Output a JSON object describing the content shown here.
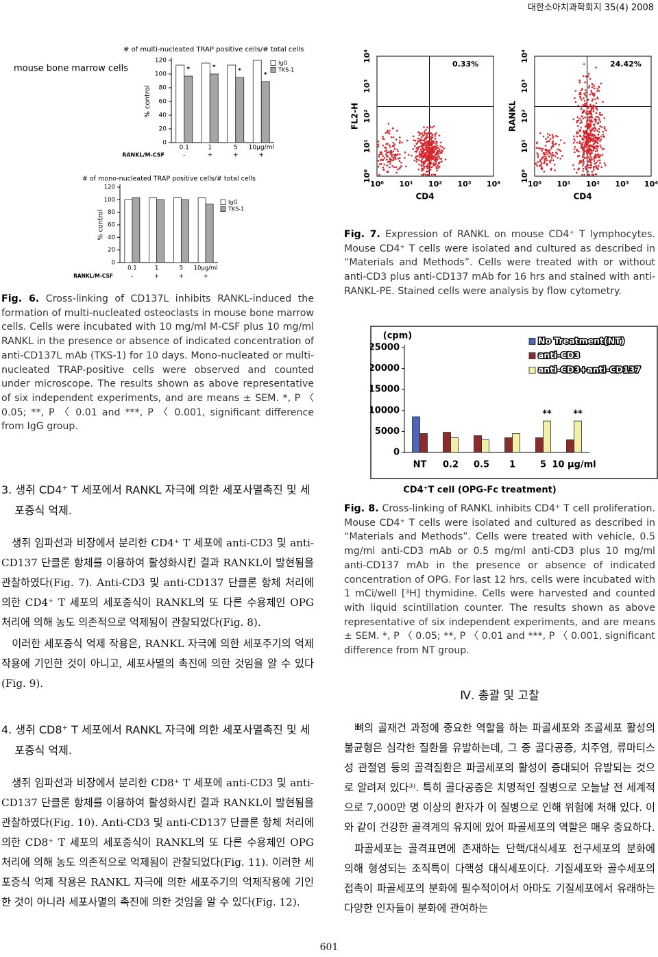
{
  "header": {
    "journal": "대한소아치과학회지 35(4) 2008"
  },
  "chart_data": [
    {
      "type": "bar",
      "title": "# of multi-nucleated TRAP positive cells/# total cells",
      "side_label": "mouse bone marrow cells",
      "ylabel": "% control",
      "categories": [
        "0.1",
        "1",
        "5",
        "10μg/ml"
      ],
      "series": [
        {
          "name": "IgG",
          "color": "#ffffff",
          "values": [
            113,
            116,
            113,
            120
          ]
        },
        {
          "name": "TKS-1",
          "color": "#a6a6a6",
          "values": [
            97,
            100,
            95,
            89
          ],
          "annotations": [
            "*",
            "*",
            "*",
            "*"
          ]
        }
      ],
      "treatment_row": {
        "label": "RANKL/M-CSF",
        "values": [
          "-",
          "+",
          "+",
          "+"
        ]
      },
      "ylim": [
        0,
        120
      ],
      "yticks": [
        0,
        20,
        40,
        60,
        80,
        100,
        120
      ]
    },
    {
      "type": "bar",
      "title": "# of mono-nucleated TRAP positive cells/# total cells",
      "ylabel": "% control",
      "categories": [
        "0.1",
        "1",
        "5",
        "10μg/ml"
      ],
      "series": [
        {
          "name": "IgG",
          "color": "#ffffff",
          "values": [
            100,
            103,
            103,
            103
          ]
        },
        {
          "name": "TKS-1",
          "color": "#a6a6a6",
          "values": [
            103,
            100,
            100,
            93
          ]
        }
      ],
      "treatment_row": {
        "label": "RANKL/M-CSF",
        "values": [
          "-",
          "+",
          "+",
          "+"
        ]
      },
      "ylim": [
        0,
        120
      ],
      "yticks": [
        0,
        20,
        40,
        60,
        80,
        100,
        120
      ]
    },
    {
      "type": "bar",
      "ylabel": "(cpm)",
      "xlabel": "CD4⁺T cell (OPG-Fc treatment)",
      "categories": [
        "NT",
        "0.2",
        "0.5",
        "1",
        "5",
        "10 μg/ml"
      ],
      "series": [
        {
          "name": "No Treatment(NT)",
          "color": "#4f66b8",
          "values": [
            8500,
            null,
            null,
            null,
            null,
            null
          ]
        },
        {
          "name": "anti-CD3",
          "color": "#8b2b2b",
          "values": [
            4500,
            4800,
            4000,
            3500,
            3500,
            3000
          ]
        },
        {
          "name": "anti-CD3+anti-CD137",
          "color": "#f4efa6",
          "values": [
            null,
            3500,
            3000,
            4500,
            7500,
            7500
          ],
          "annotations": [
            null,
            null,
            null,
            null,
            "**",
            "**"
          ]
        }
      ],
      "ylim": [
        0,
        25000
      ],
      "yticks": [
        0,
        5000,
        10000,
        15000,
        20000,
        25000
      ]
    }
  ],
  "flow_plots": [
    {
      "y_label": "FL2-H",
      "x_label": "CD4",
      "quadrant_label": "0.33%",
      "ticks": [
        "10⁰",
        "10¹",
        "10²",
        "10³",
        "10⁴"
      ]
    },
    {
      "y_label": "RANKL",
      "x_label": "CD4",
      "quadrant_label": "24.42%",
      "ticks": [
        "10⁰",
        "10¹",
        "10²",
        "10³",
        "10⁴"
      ]
    }
  ],
  "figures": {
    "fig6": {
      "label": "Fig. 6.",
      "caption": "Cross-linking of CD137L inhibits RANKL-induced the formation of multi-nucleated osteoclasts in mouse bone marrow cells. Cells were incubated with 10 mg/ml M-CSF plus 10 mg/ml RANKL in the presence or absence of indicated concentration of anti-CD137L mAb (TKS-1) for 10 days. Mono-nucleated or multi-nucleated TRAP-positive cells were observed and counted under microscope. The results shown as above representative of six independent experiments, and are means ± SEM. *, P 〈 0.05; **, P 〈 0.01 and ***, P 〈 0.001, significant difference from IgG group."
    },
    "fig7": {
      "label": "Fig. 7.",
      "caption": "Expression of RANKL on mouse CD4⁺ T lymphocytes. Mouse CD4⁺ T cells were isolated and cultured as described in “Materials and Methods”. Cells were treated with or without anti-CD3 plus anti-CD137 mAb for 16 hrs and stained with anti-RANKL-PE. Stained cells were analysis by flow cytometry."
    },
    "fig8": {
      "label": "Fig. 8.",
      "caption": "Cross-linking of RANKL inhibits CD4⁺ T cell proliferation. Mouse CD4⁺ T cells were isolated and cultured as described in “Materials and Methods”. Cells were treated with vehicle, 0.5 mg/ml anti-CD3 mAb or 0.5 mg/ml anti-CD3 plus 10 mg/ml anti-CD137 mAb in the presence or absence of indicated concentration of OPG. For last 12 hrs, cells were incubated with 1 mCi/well [³H] thymidine. Cells were harvested and counted with liquid scintillation counter. The results shown as above representative of six independent experiments, and are means ± SEM. *, P 〈 0.05; **, P 〈 0.01 and ***, P 〈 0.001, significant difference from NT group."
    }
  },
  "sections": [
    {
      "heading": "3. 생쥐 CD4⁺ T 세포에서 RANKL 자극에 의한 세포사멸촉진 및 세포증식 억제.",
      "paragraphs": [
        "생쥐 임파선과 비장에서 분리한 CD4⁺ T 세포에 anti-CD3 및 anti-CD137 단클론 항체를 이용하여 활성화시킨 결과 RANKL이 발현됨을 관찰하였다(Fig. 7). Anti-CD3 및 anti-CD137 단클론 항체 처리에 의한 CD4⁺ T 세포의 세포증식이 RANKL의 또 다른 수용체인 OPG 처리에 의해 농도 의존적으로 억제됨이 관찰되었다(Fig. 8).",
        "이러한 세포증식 억제 작용은, RANKL 자극에 의한 세포주기의 억제작용에 기인한 것이 아니고, 세포사멸의 촉진에 의한 것임을 알 수 있다(Fig. 9)."
      ]
    },
    {
      "heading": "4. 생쥐 CD8⁺ T 세포에서 RANKL 자극에 의한 세포사멸촉진 및 세포증식 억제.",
      "paragraphs": [
        "생쥐 임파선과 비장에서 분리한 CD8⁺ T 세포에 anti-CD3 및 anti-CD137 단클론 항체를 이용하여 활성화시킨 결과 RANKL이 발현됨을 관찰하였다(Fig. 10). Anti-CD3 및 anti-CD137 단클론 항체 처리에 의한 CD8⁺ T 세포의 세포증식이 RANKL의 또 다른 수용체인 OPG 처리에 의해 농도 의존적으로 억제됨이 관찰되었다(Fig. 11). 이러한 세포증식 억제 작용은 RANKL 자극에 의한 세포주기의 억제작용에 기인한 것이 아니라 세포사멸의 촉진에 의한 것임을 알 수 있다(Fig. 12)."
      ]
    },
    {
      "heading": "Ⅳ. 총괄 및 고찰",
      "paragraphs": [
        "뼈의 골재건 과정에 중요한 역할을 하는 파골세포와 조골세포 활성의 불균형은 심각한 질환을 유발하는데, 그 중 골다공증, 치주염, 류마티스성 관절염 등의 골격질환은 파골세포의 활성이 증대되어 유발되는 것으로 알려져 있다³⁾. 특히 골다공증은 치명적인 질병으로 오늘날 전 세계적으로 7,000만 명 이상의 환자가 이 질병으로 인해 위험에 처해 있다. 이와 같이 건강한 골격계의 유지에 있어 파골세포의 역할은 매우 중요하다.",
        "파골세포는 골격표면에 존재하는 단핵/대식세포 전구세포의 분화에 의해 형성되는 조직특이 다핵성 대식세포이다. 기질세포와 골수세포의 접촉이 파골세포의 분화에 필수적이어서 아마도 기질세포에서 유래하는 다양한 인자들이 분화에 관여하는"
      ]
    }
  ],
  "page_number": "601"
}
